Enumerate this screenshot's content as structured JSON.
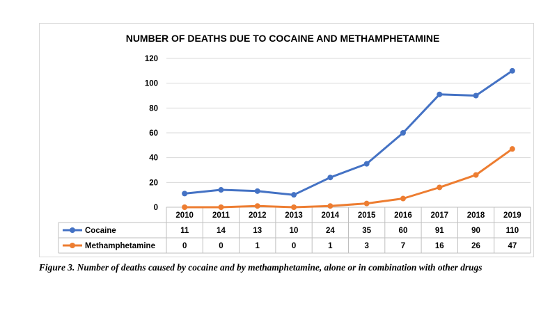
{
  "chart_data": {
    "type": "line",
    "title": "NUMBER OF DEATHS DUE TO COCAINE AND METHAMPHETAMINE",
    "categories": [
      "2010",
      "2011",
      "2012",
      "2013",
      "2014",
      "2015",
      "2016",
      "2017",
      "2018",
      "2019"
    ],
    "series": [
      {
        "name": "Cocaine",
        "color": "#4472C4",
        "values": [
          11,
          14,
          13,
          10,
          24,
          35,
          60,
          91,
          90,
          110
        ]
      },
      {
        "name": "Methamphetamine",
        "color": "#ED7D31",
        "values": [
          0,
          0,
          1,
          0,
          1,
          3,
          7,
          16,
          26,
          47
        ]
      }
    ],
    "ylim": [
      0,
      120
    ],
    "yticks": [
      "0",
      "20",
      "40",
      "60",
      "80",
      "100",
      "120"
    ],
    "grid": "horizontal",
    "legend": "data table below chart"
  },
  "caption": "Figure 3.  Number of deaths caused by cocaine and by methamphetamine, alone or in combination with other drugs"
}
